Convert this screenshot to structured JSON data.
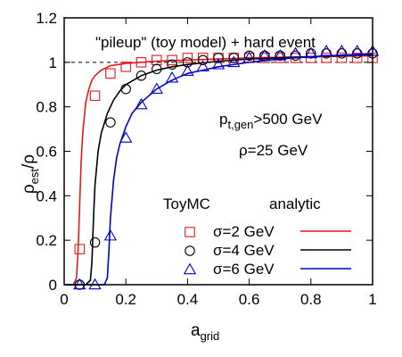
{
  "chart_data": {
    "type": "line",
    "title": "\"pileup\" (toy model) + hard event",
    "xlabel": {
      "main": "a",
      "sub": "grid"
    },
    "ylabel": {
      "main": "ρ",
      "sub": "est",
      "suffix": "/ρ"
    },
    "xlim": [
      0,
      1
    ],
    "ylim": [
      0,
      1.2
    ],
    "xticks": [
      0,
      0.2,
      0.4,
      0.6,
      0.8,
      1
    ],
    "xtick_labels": [
      "0",
      "0.2",
      "0.4",
      "0.6",
      "0.8",
      "1"
    ],
    "yticks": [
      0,
      0.2,
      0.4,
      0.6,
      0.8,
      1,
      1.2
    ],
    "ytick_labels": [
      "0",
      "0.2",
      "0.4",
      "0.6",
      "0.8",
      "1",
      "1.2"
    ],
    "reference_line_y": 1,
    "annotations": [
      {
        "main": "p",
        "sub": "t,gen",
        "suffix": ">500 GeV"
      },
      {
        "main": "ρ=25 GeV"
      }
    ],
    "legend": {
      "placement": "bottom-right",
      "header_markers": "ToyMC",
      "header_lines": "analytic"
    },
    "series": [
      {
        "name": "σ=2 GeV",
        "color": "#e41a1c",
        "marker": "square",
        "x": [
          0.05,
          0.1,
          0.15,
          0.2,
          0.25,
          0.3,
          0.35,
          0.4,
          0.45,
          0.5,
          0.55,
          0.6,
          0.65,
          0.7,
          0.75,
          0.8,
          0.85,
          0.9,
          0.95,
          1.0
        ],
        "toy": [
          0.16,
          0.85,
          0.95,
          0.98,
          1.0,
          1.01,
          1.01,
          1.02,
          1.02,
          1.02,
          1.02,
          1.02,
          1.02,
          1.02,
          1.02,
          1.02,
          1.02,
          1.02,
          1.02,
          1.02
        ],
        "curve_x": [
          0.0,
          0.02,
          0.03,
          0.04,
          0.045,
          0.05,
          0.055,
          0.06,
          0.07,
          0.08,
          0.09,
          0.1,
          0.12,
          0.15,
          0.2,
          0.25,
          0.3,
          0.4,
          0.5,
          0.6,
          0.8,
          1.0
        ],
        "curve_y": [
          0.0,
          0.0,
          0.0,
          0.03,
          0.15,
          0.35,
          0.55,
          0.68,
          0.82,
          0.88,
          0.92,
          0.94,
          0.965,
          0.985,
          0.995,
          1.0,
          1.005,
          1.01,
          1.015,
          1.02,
          1.025,
          1.03
        ]
      },
      {
        "name": "σ=4 GeV",
        "color": "#000000",
        "marker": "circle",
        "x": [
          0.05,
          0.1,
          0.15,
          0.2,
          0.25,
          0.3,
          0.35,
          0.4,
          0.45,
          0.5,
          0.55,
          0.6,
          0.65,
          0.7,
          0.75,
          0.8,
          0.85,
          0.9,
          0.95,
          1.0
        ],
        "toy": [
          0.0,
          0.19,
          0.73,
          0.88,
          0.94,
          0.97,
          0.99,
          1.0,
          1.01,
          1.02,
          1.02,
          1.03,
          1.03,
          1.03,
          1.03,
          1.04,
          1.04,
          1.04,
          1.04,
          1.04
        ],
        "curve_x": [
          0.0,
          0.07,
          0.085,
          0.09,
          0.095,
          0.1,
          0.11,
          0.12,
          0.14,
          0.16,
          0.18,
          0.2,
          0.25,
          0.3,
          0.35,
          0.4,
          0.5,
          0.6,
          0.8,
          1.0
        ],
        "curve_y": [
          0.0,
          0.0,
          0.02,
          0.1,
          0.3,
          0.45,
          0.6,
          0.68,
          0.77,
          0.83,
          0.87,
          0.9,
          0.94,
          0.965,
          0.98,
          0.99,
          1.005,
          1.015,
          1.025,
          1.035
        ]
      },
      {
        "name": "σ=6 GeV",
        "color": "#0000cc",
        "marker": "triangle",
        "x": [
          0.05,
          0.1,
          0.15,
          0.2,
          0.25,
          0.3,
          0.35,
          0.4,
          0.45,
          0.5,
          0.55,
          0.6,
          0.65,
          0.7,
          0.75,
          0.8,
          0.85,
          0.9,
          0.95,
          1.0
        ],
        "toy": [
          0.0,
          0.0,
          0.22,
          0.66,
          0.81,
          0.88,
          0.93,
          0.96,
          0.98,
          0.99,
          1.0,
          1.02,
          1.03,
          1.03,
          1.04,
          1.04,
          1.05,
          1.05,
          1.05,
          1.05
        ],
        "curve_x": [
          0.0,
          0.13,
          0.14,
          0.145,
          0.15,
          0.16,
          0.17,
          0.18,
          0.2,
          0.22,
          0.25,
          0.3,
          0.35,
          0.4,
          0.45,
          0.5,
          0.6,
          0.7,
          0.8,
          1.0
        ],
        "curve_y": [
          0.0,
          0.0,
          0.03,
          0.15,
          0.3,
          0.47,
          0.57,
          0.63,
          0.71,
          0.77,
          0.82,
          0.88,
          0.92,
          0.95,
          0.965,
          0.98,
          1.0,
          1.015,
          1.025,
          1.04
        ]
      }
    ]
  }
}
